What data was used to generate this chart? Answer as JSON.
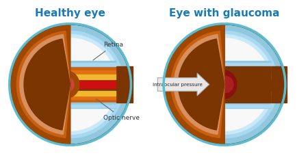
{
  "title_left": "Healthy eye",
  "title_right": "Eye with glaucoma",
  "title_color": "#1a7ab5",
  "title_fontsize": 11,
  "bg_color": "#ffffff",
  "brown_dark": "#7a3500",
  "brown_mid": "#a04800",
  "brown_light": "#c86010",
  "orange": "#e07010",
  "yellow": "#f0b830",
  "blue_outer": "#90c8e0",
  "blue_mid": "#aad8f0",
  "blue_light": "#c8eaf8",
  "white_interior": "#f8f8f8",
  "red": "#cc1010",
  "dark_red": "#8b1010",
  "dark_blue": "#1a2a7a",
  "navy": "#1a3a8a",
  "label_color": "#444444",
  "pressure_text": "Intraocular pressure",
  "retina_label": "Retina",
  "nerve_label": "Optic nerve"
}
